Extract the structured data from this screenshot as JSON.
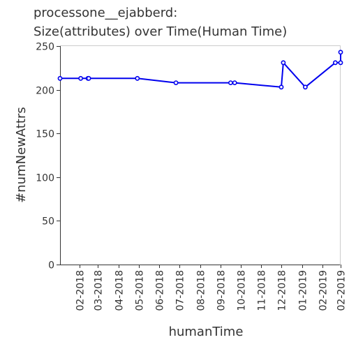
{
  "chart_data": {
    "type": "line",
    "title": "processone__ejabberd:",
    "subtitle": "Size(attributes) over Time(Human Time)",
    "xlabel": "humanTime",
    "ylabel": "#numNewAttrs",
    "ylim": [
      0,
      250
    ],
    "y_ticks": [
      0,
      50,
      100,
      150,
      200,
      250
    ],
    "xlim": [
      "2018-01-03",
      "2019-02-28"
    ],
    "x_ticks": [
      {
        "date": "2018-02-01",
        "label": "02-2018"
      },
      {
        "date": "2018-03-01",
        "label": "03-2018"
      },
      {
        "date": "2018-04-01",
        "label": "04-2018"
      },
      {
        "date": "2018-05-01",
        "label": "05-2018"
      },
      {
        "date": "2018-06-01",
        "label": "06-2018"
      },
      {
        "date": "2018-07-01",
        "label": "07-2018"
      },
      {
        "date": "2018-08-01",
        "label": "08-2018"
      },
      {
        "date": "2018-09-01",
        "label": "09-2018"
      },
      {
        "date": "2018-10-01",
        "label": "10-2018"
      },
      {
        "date": "2018-11-01",
        "label": "11-2018"
      },
      {
        "date": "2018-12-01",
        "label": "12-2018"
      },
      {
        "date": "2019-01-01",
        "label": "01-2019"
      },
      {
        "date": "2019-02-01",
        "label": "02-2019"
      },
      {
        "date": "2019-02-28",
        "label": "02-2019"
      }
    ],
    "grid": false,
    "line_color": "#0000ee",
    "series": [
      {
        "x": [
          "2018-01-03",
          "2018-02-03",
          "2018-02-14",
          "2018-02-15",
          "2018-04-29",
          "2018-06-26",
          "2018-09-16",
          "2018-09-22",
          "2018-12-01",
          "2018-12-04",
          "2019-01-06",
          "2019-02-20",
          "2019-02-28",
          "2019-02-28"
        ],
        "y": [
          213,
          213,
          213,
          213,
          213,
          208,
          208,
          208,
          203,
          231,
          203,
          231,
          231,
          243
        ]
      }
    ]
  }
}
